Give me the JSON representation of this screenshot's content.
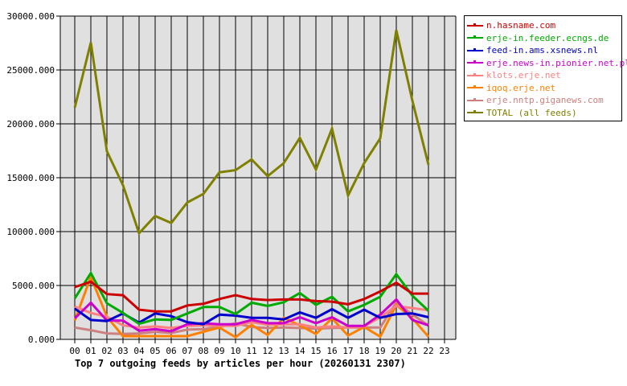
{
  "chart_data": {
    "type": "line",
    "title": "Top 7 outgoing feeds by articles per hour (20260131 2307)",
    "xlabel": "",
    "ylabel": "",
    "ylim": [
      0,
      30000
    ],
    "y_ticks": [
      "0.000",
      "5000.000",
      "10000.000",
      "15000.000",
      "20000.000",
      "25000.000",
      "30000.000"
    ],
    "y_tick_values": [
      0,
      5000,
      10000,
      15000,
      20000,
      25000,
      30000
    ],
    "categories": [
      "00",
      "01",
      "02",
      "03",
      "04",
      "05",
      "06",
      "07",
      "08",
      "09",
      "10",
      "11",
      "12",
      "13",
      "14",
      "15",
      "16",
      "17",
      "18",
      "19",
      "20",
      "21",
      "22",
      "23"
    ],
    "grid": true,
    "legend_position": "right",
    "series": [
      {
        "name": "n.hasname.com",
        "color": "#cc0000",
        "values": [
          4850,
          5350,
          4200,
          4100,
          2750,
          2600,
          2600,
          3150,
          3300,
          3750,
          4100,
          3750,
          3650,
          3700,
          3700,
          3550,
          3500,
          3250,
          3750,
          4450,
          5250,
          4250,
          4250,
          null
        ]
      },
      {
        "name": "erje-in.feeder.ecngs.de",
        "color": "#00aa00",
        "values": [
          3800,
          6150,
          3350,
          2450,
          1450,
          1850,
          1800,
          2400,
          3000,
          3000,
          2350,
          3400,
          3100,
          3450,
          4300,
          3200,
          3950,
          2600,
          3200,
          3950,
          6050,
          4050,
          2650,
          null
        ]
      },
      {
        "name": "feed-in.ams.xsnews.nl",
        "color": "#0000cc",
        "values": [
          2850,
          1800,
          1700,
          2400,
          1550,
          2400,
          2150,
          1600,
          1400,
          2300,
          2200,
          2000,
          2000,
          1850,
          2500,
          2000,
          2800,
          2000,
          2750,
          2000,
          2350,
          2400,
          2050,
          null
        ]
      },
      {
        "name": "erje.news-in.pionier.net.pl",
        "color": "#cc00cc",
        "values": [
          1950,
          3400,
          1750,
          1750,
          800,
          950,
          750,
          1400,
          1500,
          1400,
          1400,
          1800,
          1500,
          1500,
          2050,
          1500,
          2050,
          1250,
          1250,
          2300,
          3700,
          1800,
          1300,
          null
        ]
      },
      {
        "name": "klots.erje.net",
        "color": "#ff8080",
        "values": [
          3050,
          2450,
          2100,
          1300,
          1100,
          1200,
          1050,
          1250,
          1300,
          1250,
          1250,
          1600,
          1350,
          1400,
          1400,
          1100,
          1200,
          1100,
          1200,
          2050,
          3100,
          2900,
          2700,
          null
        ]
      },
      {
        "name": "iqoq.erje.net",
        "color": "#ff8000",
        "values": [
          1750,
          5800,
          2100,
          300,
          300,
          300,
          300,
          300,
          700,
          1100,
          200,
          1350,
          400,
          2000,
          1300,
          500,
          1950,
          350,
          1150,
          250,
          3200,
          1950,
          250,
          null
        ]
      },
      {
        "name": "erje.nntp.giganews.com",
        "color": "#cc8080",
        "values": [
          1100,
          850,
          550,
          500,
          550,
          700,
          600,
          900,
          950,
          1150,
          1500,
          1150,
          1050,
          1100,
          1050,
          1000,
          1050,
          1100,
          1100,
          1100,
          3450,
          2300,
          1300,
          null
        ]
      },
      {
        "name": "TOTAL (all feeds)",
        "color": "#808000",
        "values": [
          21500,
          27550,
          17450,
          14300,
          9850,
          11450,
          10800,
          12700,
          13500,
          15500,
          15700,
          16700,
          15150,
          16350,
          18700,
          15750,
          19550,
          13350,
          16350,
          18650,
          28700,
          22150,
          16200,
          null
        ]
      }
    ]
  },
  "colors": {
    "plot_background": "#e0e0e0",
    "grid": "#000000",
    "axis": "#000000"
  }
}
